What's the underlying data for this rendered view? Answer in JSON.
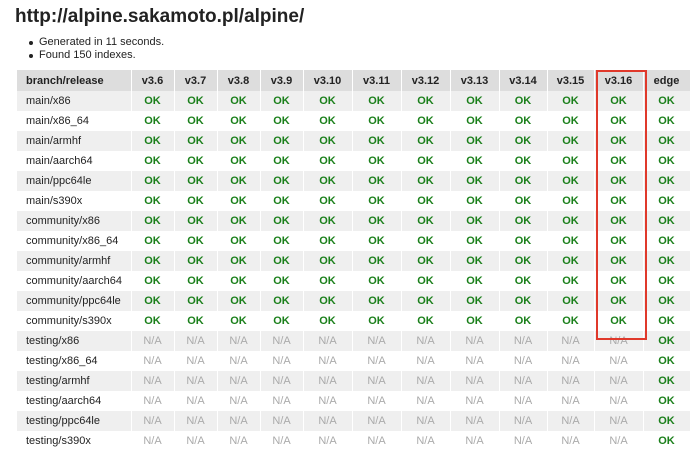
{
  "page": {
    "title": "http://alpine.sakamoto.pl/alpine/",
    "summary": [
      "Generated in 11 seconds.",
      "Found 150 indexes."
    ]
  },
  "table": {
    "corner_header": "branch/release",
    "columns": [
      "v3.6",
      "v3.7",
      "v3.8",
      "v3.9",
      "v3.10",
      "v3.11",
      "v3.12",
      "v3.13",
      "v3.14",
      "v3.15",
      "v3.16",
      "edge"
    ],
    "highlighted_column": "v3.16",
    "rows": [
      {
        "name": "main/x86",
        "cells": [
          "OK",
          "OK",
          "OK",
          "OK",
          "OK",
          "OK",
          "OK",
          "OK",
          "OK",
          "OK",
          "OK",
          "OK"
        ]
      },
      {
        "name": "main/x86_64",
        "cells": [
          "OK",
          "OK",
          "OK",
          "OK",
          "OK",
          "OK",
          "OK",
          "OK",
          "OK",
          "OK",
          "OK",
          "OK"
        ]
      },
      {
        "name": "main/armhf",
        "cells": [
          "OK",
          "OK",
          "OK",
          "OK",
          "OK",
          "OK",
          "OK",
          "OK",
          "OK",
          "OK",
          "OK",
          "OK"
        ]
      },
      {
        "name": "main/aarch64",
        "cells": [
          "OK",
          "OK",
          "OK",
          "OK",
          "OK",
          "OK",
          "OK",
          "OK",
          "OK",
          "OK",
          "OK",
          "OK"
        ]
      },
      {
        "name": "main/ppc64le",
        "cells": [
          "OK",
          "OK",
          "OK",
          "OK",
          "OK",
          "OK",
          "OK",
          "OK",
          "OK",
          "OK",
          "OK",
          "OK"
        ]
      },
      {
        "name": "main/s390x",
        "cells": [
          "OK",
          "OK",
          "OK",
          "OK",
          "OK",
          "OK",
          "OK",
          "OK",
          "OK",
          "OK",
          "OK",
          "OK"
        ]
      },
      {
        "name": "community/x86",
        "cells": [
          "OK",
          "OK",
          "OK",
          "OK",
          "OK",
          "OK",
          "OK",
          "OK",
          "OK",
          "OK",
          "OK",
          "OK"
        ]
      },
      {
        "name": "community/x86_64",
        "cells": [
          "OK",
          "OK",
          "OK",
          "OK",
          "OK",
          "OK",
          "OK",
          "OK",
          "OK",
          "OK",
          "OK",
          "OK"
        ]
      },
      {
        "name": "community/armhf",
        "cells": [
          "OK",
          "OK",
          "OK",
          "OK",
          "OK",
          "OK",
          "OK",
          "OK",
          "OK",
          "OK",
          "OK",
          "OK"
        ]
      },
      {
        "name": "community/aarch64",
        "cells": [
          "OK",
          "OK",
          "OK",
          "OK",
          "OK",
          "OK",
          "OK",
          "OK",
          "OK",
          "OK",
          "OK",
          "OK"
        ]
      },
      {
        "name": "community/ppc64le",
        "cells": [
          "OK",
          "OK",
          "OK",
          "OK",
          "OK",
          "OK",
          "OK",
          "OK",
          "OK",
          "OK",
          "OK",
          "OK"
        ]
      },
      {
        "name": "community/s390x",
        "cells": [
          "OK",
          "OK",
          "OK",
          "OK",
          "OK",
          "OK",
          "OK",
          "OK",
          "OK",
          "OK",
          "OK",
          "OK"
        ]
      },
      {
        "name": "testing/x86",
        "cells": [
          "N/A",
          "N/A",
          "N/A",
          "N/A",
          "N/A",
          "N/A",
          "N/A",
          "N/A",
          "N/A",
          "N/A",
          "N/A",
          "OK"
        ]
      },
      {
        "name": "testing/x86_64",
        "cells": [
          "N/A",
          "N/A",
          "N/A",
          "N/A",
          "N/A",
          "N/A",
          "N/A",
          "N/A",
          "N/A",
          "N/A",
          "N/A",
          "OK"
        ]
      },
      {
        "name": "testing/armhf",
        "cells": [
          "N/A",
          "N/A",
          "N/A",
          "N/A",
          "N/A",
          "N/A",
          "N/A",
          "N/A",
          "N/A",
          "N/A",
          "N/A",
          "OK"
        ]
      },
      {
        "name": "testing/aarch64",
        "cells": [
          "N/A",
          "N/A",
          "N/A",
          "N/A",
          "N/A",
          "N/A",
          "N/A",
          "N/A",
          "N/A",
          "N/A",
          "N/A",
          "OK"
        ]
      },
      {
        "name": "testing/ppc64le",
        "cells": [
          "N/A",
          "N/A",
          "N/A",
          "N/A",
          "N/A",
          "N/A",
          "N/A",
          "N/A",
          "N/A",
          "N/A",
          "N/A",
          "OK"
        ]
      },
      {
        "name": "testing/s390x",
        "cells": [
          "N/A",
          "N/A",
          "N/A",
          "N/A",
          "N/A",
          "N/A",
          "N/A",
          "N/A",
          "N/A",
          "N/A",
          "N/A",
          "OK"
        ]
      }
    ]
  },
  "colors": {
    "ok": "#1a7f1a",
    "na": "#aaaaaa",
    "header_bg": "#dddddd",
    "stripe_bg": "#efefef",
    "highlight_border": "#e0392b"
  }
}
